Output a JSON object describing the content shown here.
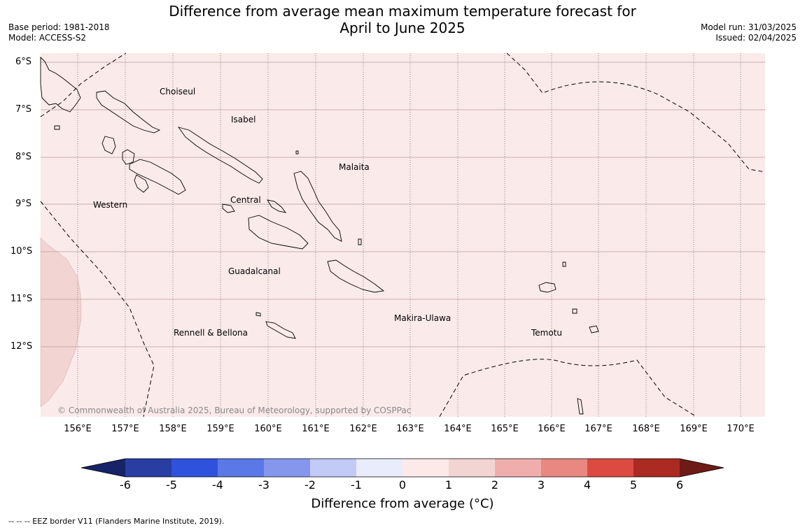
{
  "header": {
    "title_line1": "Difference from average mean maximum temperature forecast for",
    "title_line2": "April to June 2025",
    "base_period": "Base period: 1981-2018",
    "model": "Model: ACCESS-S2",
    "model_run": "Model run: 31/03/2025",
    "issued": "Issued: 02/04/2025"
  },
  "map": {
    "latitude_labels": [
      "6°S",
      "7°S",
      "8°S",
      "9°S",
      "10°S",
      "11°S",
      "12°S"
    ],
    "longitude_labels": [
      "156°E",
      "157°E",
      "158°E",
      "159°E",
      "160°E",
      "161°E",
      "162°E",
      "163°E",
      "164°E",
      "165°E",
      "166°E",
      "167°E",
      "168°E",
      "169°E",
      "170°E"
    ],
    "regions": [
      {
        "name": "Choiseul"
      },
      {
        "name": "Isabel"
      },
      {
        "name": "Malaita"
      },
      {
        "name": "Western"
      },
      {
        "name": "Central"
      },
      {
        "name": "Guadalcanal"
      },
      {
        "name": "Makira-Ulawa"
      },
      {
        "name": "Rennell & Bellona"
      },
      {
        "name": "Temotu"
      }
    ],
    "background_category": "0 to 1",
    "background_color": "#fbeaea",
    "western_patch_category": "1 to 2",
    "western_patch_color": "#f2d5d3",
    "copyright": "© Commonwealth of Australia 2025, Bureau of Meteorology, supported by COSPPac"
  },
  "colorbar": {
    "ticks": [
      "-6",
      "-5",
      "-4",
      "-3",
      "-2",
      "-1",
      "0",
      "1",
      "2",
      "3",
      "4",
      "5",
      "6"
    ],
    "colors": [
      "#283ea3",
      "#2f52dd",
      "#5a78e6",
      "#8597ec",
      "#c2caf6",
      "#e9ecfb",
      "#fce9e8",
      "#f2d5d3",
      "#efaeac",
      "#e88880",
      "#dc4a41",
      "#ab2a22"
    ],
    "low_extend_color": "#162366",
    "high_extend_color": "#6e1a16",
    "label": "Difference from average (°C)"
  },
  "footnote": "--  --  -- EEZ border V11 (Flanders Marine Institute, 2019)."
}
